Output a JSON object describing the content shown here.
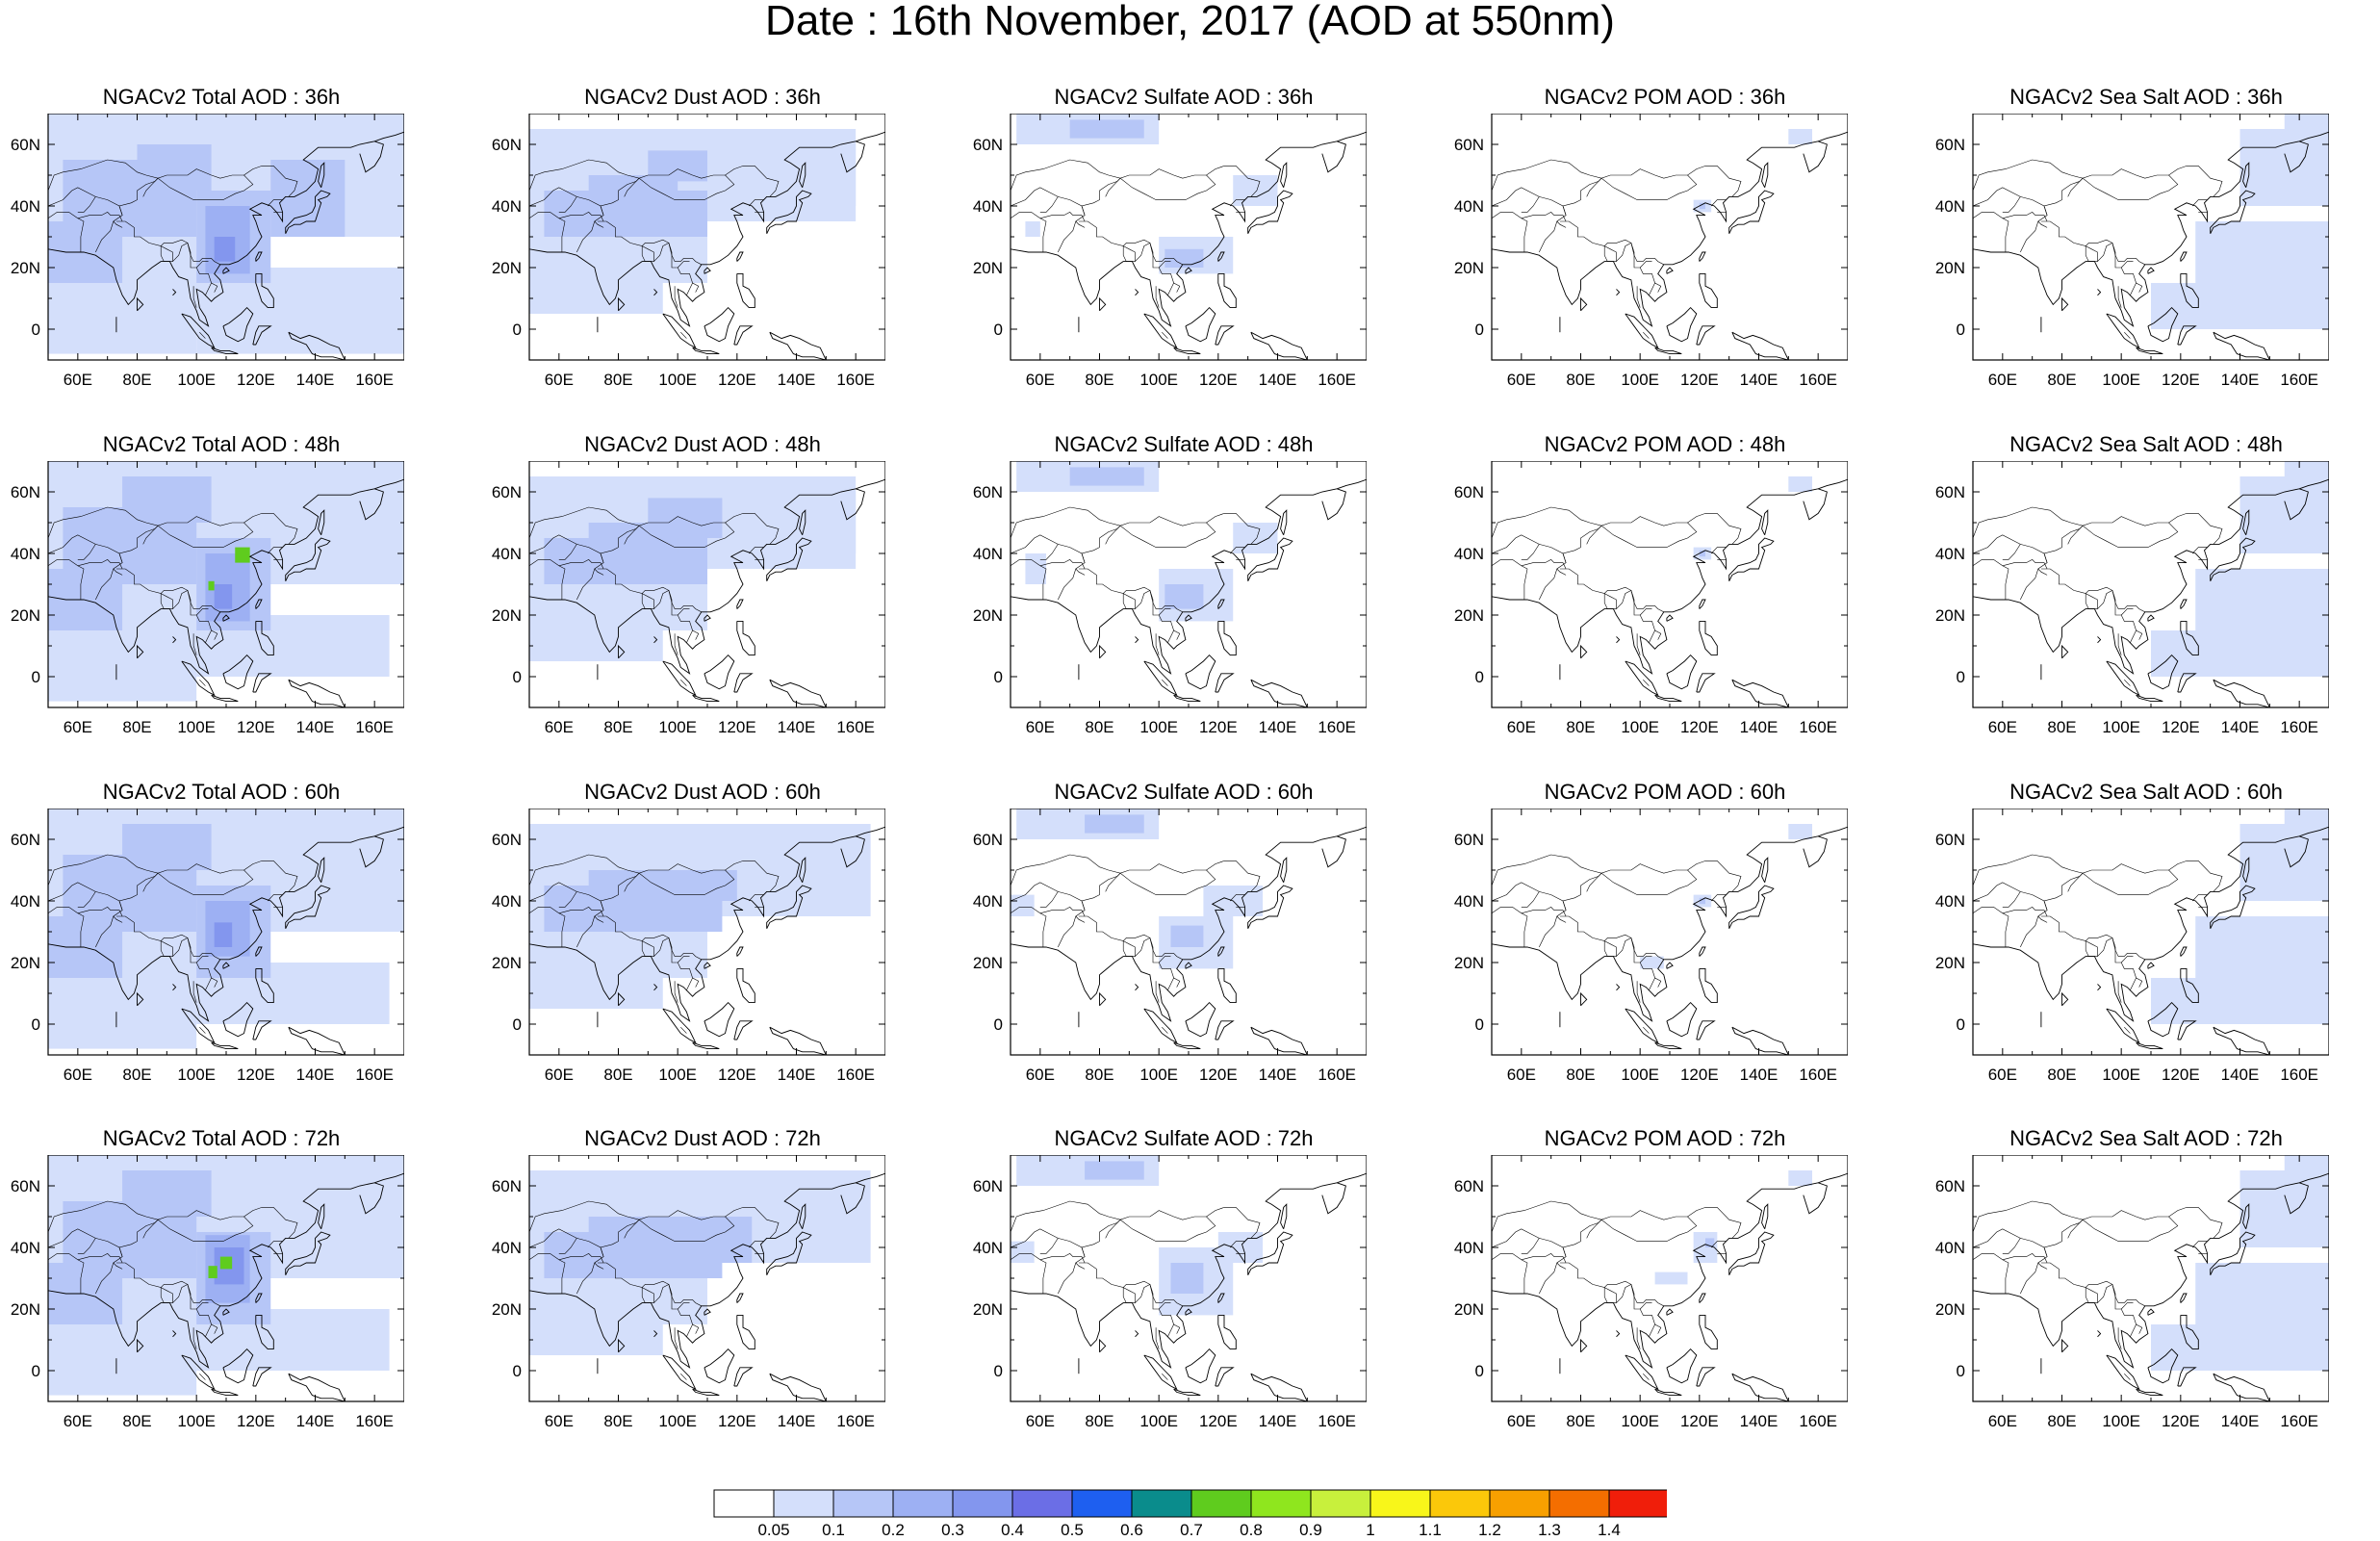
{
  "title": "Date : 16th November, 2017 (AOD at 550nm)",
  "map": {
    "lon_range": [
      50,
      170
    ],
    "lat_range": [
      -10,
      70
    ],
    "x_ticks": [
      "60E",
      "80E",
      "100E",
      "120E",
      "140E",
      "160E"
    ],
    "y_ticks": [
      "60N",
      "40N",
      "20N",
      "0"
    ]
  },
  "panels": [
    {
      "title": "NGACv2 Total AOD : 36h",
      "species": "total",
      "lead": "36h"
    },
    {
      "title": "NGACv2 Dust AOD : 36h",
      "species": "dust",
      "lead": "36h"
    },
    {
      "title": "NGACv2 Sulfate AOD : 36h",
      "species": "sulfate",
      "lead": "36h"
    },
    {
      "title": "NGACv2 POM AOD : 36h",
      "species": "pom",
      "lead": "36h"
    },
    {
      "title": "NGACv2 Sea Salt AOD : 36h",
      "species": "seasalt",
      "lead": "36h"
    },
    {
      "title": "NGACv2 Total AOD : 48h",
      "species": "total",
      "lead": "48h"
    },
    {
      "title": "NGACv2 Dust AOD : 48h",
      "species": "dust",
      "lead": "48h"
    },
    {
      "title": "NGACv2 Sulfate AOD : 48h",
      "species": "sulfate",
      "lead": "48h"
    },
    {
      "title": "NGACv2 POM AOD : 48h",
      "species": "pom",
      "lead": "48h"
    },
    {
      "title": "NGACv2 Sea Salt AOD : 48h",
      "species": "seasalt",
      "lead": "48h"
    },
    {
      "title": "NGACv2 Total AOD : 60h",
      "species": "total",
      "lead": "60h"
    },
    {
      "title": "NGACv2 Dust AOD : 60h",
      "species": "dust",
      "lead": "60h"
    },
    {
      "title": "NGACv2 Sulfate AOD : 60h",
      "species": "sulfate",
      "lead": "60h"
    },
    {
      "title": "NGACv2 POM AOD : 60h",
      "species": "pom",
      "lead": "60h"
    },
    {
      "title": "NGACv2 Sea Salt AOD : 60h",
      "species": "seasalt",
      "lead": "60h"
    },
    {
      "title": "NGACv2 Total AOD : 72h",
      "species": "total",
      "lead": "72h"
    },
    {
      "title": "NGACv2 Dust AOD : 72h",
      "species": "dust",
      "lead": "72h"
    },
    {
      "title": "NGACv2 Sulfate AOD : 72h",
      "species": "sulfate",
      "lead": "72h"
    },
    {
      "title": "NGACv2 POM AOD : 72h",
      "species": "pom",
      "lead": "72h"
    },
    {
      "title": "NGACv2 Sea Salt  AOD : 72h",
      "species": "seasalt",
      "lead": "72h"
    }
  ],
  "colorbar": {
    "labels": [
      "0.05",
      "0.1",
      "0.2",
      "0.3",
      "0.4",
      "0.5",
      "0.6",
      "0.7",
      "0.8",
      "0.9",
      "1",
      "1.1",
      "1.2",
      "1.3",
      "1.4"
    ],
    "colors": [
      "#ffffff",
      "#d4dffb",
      "#b6c6f7",
      "#9db0f3",
      "#8396ee",
      "#6b6ee6",
      "#1e5ff0",
      "#0a8c8c",
      "#5fcc1e",
      "#8fe61e",
      "#c8f03c",
      "#f8f61a",
      "#fbc80a",
      "#f8a000",
      "#f46e00",
      "#f01e0a"
    ]
  },
  "field_palette": {
    "level1": "#d4dffb",
    "level2": "#b6c6f7",
    "level3": "#9db0f3",
    "level4": "#8396ee",
    "green": "#5fcc1e",
    "coast": "#000000"
  }
}
